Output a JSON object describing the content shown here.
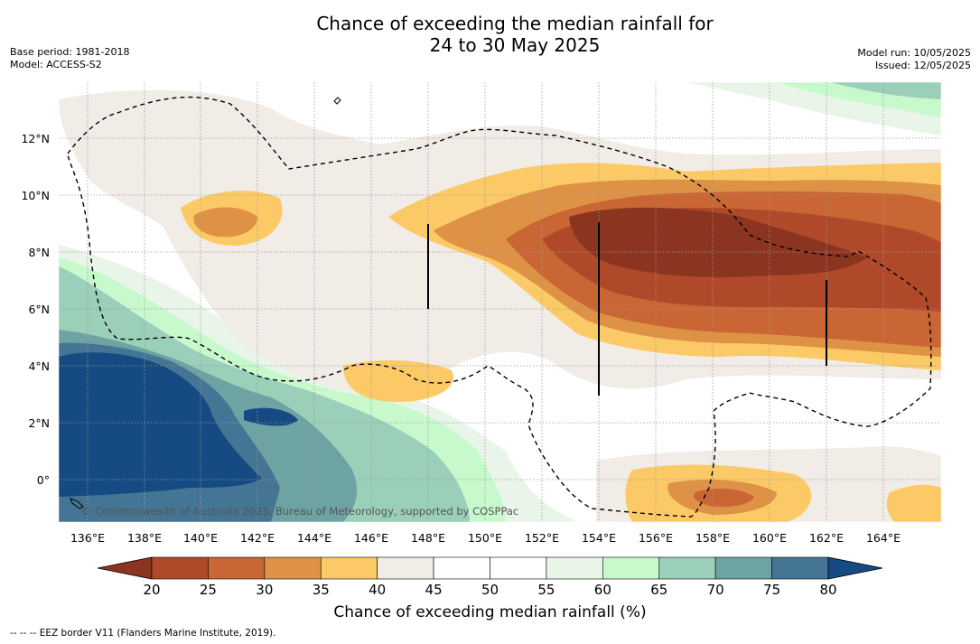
{
  "title_line1": "Chance of exceeding the median rainfall for",
  "title_line2": "24 to 30 May 2025",
  "base_period": "Base period: 1981-2018",
  "model": "Model: ACCESS-S2",
  "model_run": "Model run: 10/05/2025",
  "issued": "Issued: 12/05/2025",
  "copyright": "© Commonwealth of Australia 2025, Bureau of Meteorology, supported by COSPPac",
  "lon_labels": [
    "136°E",
    "138°E",
    "140°E",
    "142°E",
    "144°E",
    "146°E",
    "148°E",
    "150°E",
    "152°E",
    "154°E",
    "156°E",
    "158°E",
    "160°E",
    "162°E",
    "164°E"
  ],
  "lat_labels": [
    "12°N",
    "10°N",
    "8°N",
    "6°N",
    "4°N",
    "2°N",
    "0°"
  ],
  "colorbar": {
    "title": "Chance of exceeding median rainfall (%)",
    "ticks": [
      "20",
      "25",
      "30",
      "35",
      "40",
      "45",
      "50",
      "55",
      "60",
      "65",
      "70",
      "75",
      "80"
    ],
    "colors": [
      "#8b3520",
      "#b0492a",
      "#c96633",
      "#de9245",
      "#fbca67",
      "#f1ece6",
      "#ffffff",
      "#ffffff",
      "#e9f5e8",
      "#c8f9cd",
      "#9acfb9",
      "#6ea3a3",
      "#457594",
      "#164a82"
    ]
  },
  "footnote": "-- -- -- EEZ border V11 (Flanders Marine Institute, 2019)."
}
